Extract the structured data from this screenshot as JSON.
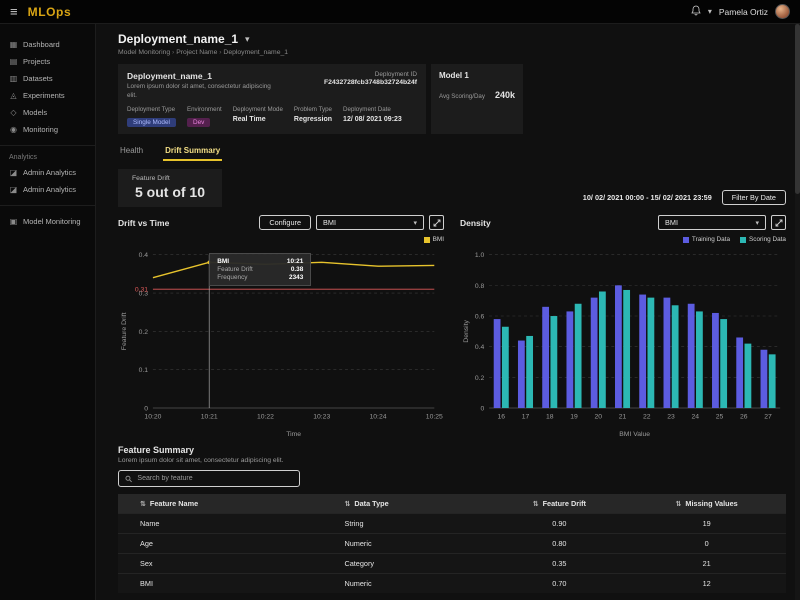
{
  "topbar": {
    "app_title": "MLOps",
    "user_name": "Pamela Ortiz"
  },
  "colors": {
    "brand_gold": "#d9a514",
    "active_tab_underline": "#e7c32c",
    "drift_line": "#e7c32c",
    "threshold_red": "#e05a5a",
    "training_data": "#5c5ce0",
    "scoring_data": "#2cb8b4",
    "badge_single_model_bg": "#2f3d7a",
    "badge_single_model_text": "#aebcff",
    "badge_dev_bg": "#54204d",
    "badge_dev_text": "#ea84dd"
  },
  "sidebar": {
    "items": [
      {
        "label": "Dashboard",
        "icon": "dashboard-icon"
      },
      {
        "label": "Projects",
        "icon": "projects-icon"
      },
      {
        "label": "Datasets",
        "icon": "datasets-icon"
      },
      {
        "label": "Experiments",
        "icon": "experiments-icon"
      },
      {
        "label": "Models",
        "icon": "models-icon"
      },
      {
        "label": "Monitoring",
        "icon": "monitoring-icon"
      }
    ],
    "section_label": "Analytics",
    "analytics_items": [
      {
        "label": "Admin Analytics",
        "icon": "analytics-icon"
      },
      {
        "label": "Admin Analytics",
        "icon": "analytics-icon"
      }
    ],
    "bottom_items": [
      {
        "label": "Model Monitoring",
        "icon": "model-monitoring-icon"
      }
    ]
  },
  "page": {
    "title": "Deployment_name_1",
    "breadcrumb": [
      "Model Monitoring",
      "Project Name",
      "Deployment_name_1"
    ]
  },
  "deployment_card": {
    "name": "Deployment_name_1",
    "description": "Lorem ipsum dolor sit amet, consectetur adipiscing elit.",
    "deployment_id_label": "Deployment ID",
    "deployment_id": "F2432728fcb3748b32724b24f",
    "fields": [
      {
        "label": "Deployment Type",
        "value": "Single Model"
      },
      {
        "label": "Environment",
        "value": "Dev"
      },
      {
        "label": "Deployment Mode",
        "value": "Real Time"
      },
      {
        "label": "Problem Type",
        "value": "Regression"
      },
      {
        "label": "Deployment Date",
        "value": "12/ 08/ 2021 09:23"
      }
    ]
  },
  "model_card": {
    "title": "Model 1",
    "metric_label": "Avg Scoring/Day",
    "metric_value": "240k"
  },
  "tabs": [
    {
      "label": "Health",
      "active": false
    },
    {
      "label": "Drift Summary",
      "active": true
    }
  ],
  "feature_drift_card": {
    "label": "Feature Drift",
    "value": "5 out of 10"
  },
  "date_filter": {
    "range": "10/ 02/ 2021  00:00 - 15/ 02/ 2021  23:59",
    "button_label": "Filter By Date"
  },
  "panels": {
    "drift": {
      "title": "Drift vs Time",
      "configure_label": "Configure",
      "select_value": "BMI"
    },
    "density": {
      "title": "Density",
      "select_value": "BMI"
    }
  },
  "chart_data": [
    {
      "type": "line",
      "title": "Drift vs Time",
      "x": [
        "10:20",
        "10:21",
        "10:22",
        "10:23",
        "10:24",
        "10:25"
      ],
      "xlabel": "Time",
      "ylabel": "Feature Drift",
      "ylim": [
        0,
        0.4
      ],
      "yticks": [
        {
          "v": 0,
          "label": "0"
        },
        {
          "v": 0.1,
          "label": "0.1"
        },
        {
          "v": 0.2,
          "label": "0.2"
        },
        {
          "v": 0.3,
          "label": "0.3"
        },
        {
          "v": 0.4,
          "label": "0.4"
        }
      ],
      "series": [
        {
          "name": "BMI",
          "color": "#e7c32c",
          "values": [
            0.34,
            0.38,
            0.375,
            0.38,
            0.37,
            0.372
          ]
        }
      ],
      "threshold": {
        "value": 0.31,
        "label": "0.31",
        "color": "#e05a5a"
      },
      "marker_index": 1,
      "tooltip": {
        "title": "BMI",
        "time": "10:21",
        "rows": [
          {
            "label": "Feature Drift",
            "value": "0.38"
          },
          {
            "label": "Frequency",
            "value": "2343"
          }
        ]
      },
      "grid": "dashed-horizontal",
      "legend_position": "top-right"
    },
    {
      "type": "bar",
      "title": "Density",
      "categories": [
        "16",
        "17",
        "18",
        "19",
        "20",
        "21",
        "22",
        "23",
        "24",
        "25",
        "26",
        "27"
      ],
      "xlabel": "BMI Value",
      "ylabel": "Density",
      "ylim": [
        0,
        1.0
      ],
      "yticks": [
        {
          "v": 0,
          "label": "0"
        },
        {
          "v": 0.2,
          "label": "0.2"
        },
        {
          "v": 0.4,
          "label": "0.4"
        },
        {
          "v": 0.6,
          "label": "0.6"
        },
        {
          "v": 0.8,
          "label": "0.8"
        },
        {
          "v": 1,
          "label": "1.0"
        }
      ],
      "series": [
        {
          "name": "Training Data",
          "color": "#5c5ce0",
          "values": [
            0.58,
            0.44,
            0.66,
            0.63,
            0.72,
            0.8,
            0.74,
            0.72,
            0.68,
            0.62,
            0.46,
            0.38
          ]
        },
        {
          "name": "Scoring Data",
          "color": "#2cb8b4",
          "values": [
            0.53,
            0.47,
            0.6,
            0.68,
            0.76,
            0.77,
            0.72,
            0.67,
            0.63,
            0.58,
            0.42,
            0.35
          ]
        }
      ],
      "grid": "dashed-horizontal",
      "legend_position": "top-right"
    }
  ],
  "feature_summary": {
    "title": "Feature Summary",
    "description": "Lorem ipsum dolor sit amet, consectetur adipiscing elit.",
    "search_placeholder": "Search by feature",
    "table": {
      "headers": [
        "Feature Name",
        "Data Type",
        "Feature Drift",
        "Missing Values"
      ],
      "rows": [
        [
          "Name",
          "String",
          "0.90",
          "19"
        ],
        [
          "Age",
          "Numeric",
          "0.80",
          "0"
        ],
        [
          "Sex",
          "Category",
          "0.35",
          "21"
        ],
        [
          "BMI",
          "Numeric",
          "0.70",
          "12"
        ]
      ]
    }
  }
}
